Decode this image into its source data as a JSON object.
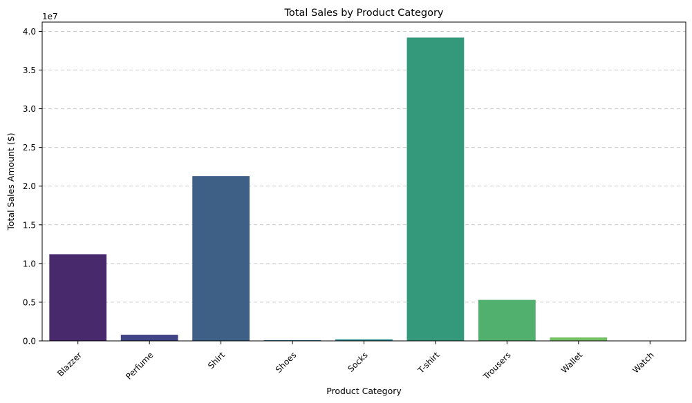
{
  "chart_data": {
    "type": "bar",
    "title": "Total Sales by Product Category",
    "xlabel": "Product Category",
    "ylabel": "Total Sales Amount ($)",
    "y_scale_label": "1e7",
    "ylim": [
      0,
      41200000.0
    ],
    "yticks": [
      0,
      5000000,
      10000000,
      15000000,
      20000000,
      25000000,
      30000000,
      35000000,
      40000000
    ],
    "ytick_labels": [
      "0.0",
      "0.5",
      "1.0",
      "1.5",
      "2.0",
      "2.5",
      "3.0",
      "3.5",
      "4.0"
    ],
    "categories": [
      "Blazzer",
      "Perfume",
      "Shirt",
      "Shoes",
      "Socks",
      "T-shirt",
      "Trousers",
      "Wallet",
      "Watch"
    ],
    "values": [
      11200000,
      800000,
      21300000,
      100000,
      200000,
      39200000,
      5300000,
      450000,
      30000
    ],
    "colors": [
      "#482a6c",
      "#414487",
      "#3e5f86",
      "#2c728e",
      "#23888e",
      "#34987a",
      "#52b06f",
      "#74c265",
      "#a5d63f"
    ],
    "grid": {
      "y": true,
      "x": false,
      "style": "dashed"
    },
    "legend": false
  }
}
